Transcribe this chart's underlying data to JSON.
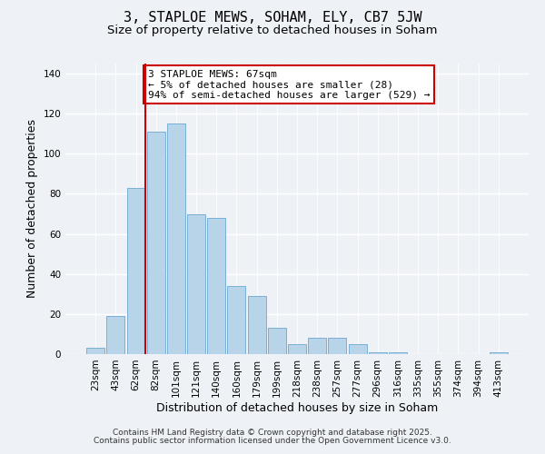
{
  "title": "3, STAPLOE MEWS, SOHAM, ELY, CB7 5JW",
  "subtitle": "Size of property relative to detached houses in Soham",
  "bar_labels": [
    "23sqm",
    "43sqm",
    "62sqm",
    "82sqm",
    "101sqm",
    "121sqm",
    "140sqm",
    "160sqm",
    "179sqm",
    "199sqm",
    "218sqm",
    "238sqm",
    "257sqm",
    "277sqm",
    "296sqm",
    "316sqm",
    "335sqm",
    "355sqm",
    "374sqm",
    "394sqm",
    "413sqm"
  ],
  "bar_values": [
    3,
    19,
    83,
    111,
    115,
    70,
    68,
    34,
    29,
    13,
    5,
    8,
    8,
    5,
    1,
    1,
    0,
    0,
    0,
    0,
    1
  ],
  "bar_color": "#b8d4e8",
  "bar_edge_color": "#7aafd4",
  "highlight_index": 2,
  "highlight_line_color": "#cc0000",
  "xlabel": "Distribution of detached houses by size in Soham",
  "ylabel": "Number of detached properties",
  "ylim": [
    0,
    145
  ],
  "yticks": [
    0,
    20,
    40,
    60,
    80,
    100,
    120,
    140
  ],
  "annotation_title": "3 STAPLOE MEWS: 67sqm",
  "annotation_line1": "← 5% of detached houses are smaller (28)",
  "annotation_line2": "94% of semi-detached houses are larger (529) →",
  "footer1": "Contains HM Land Registry data © Crown copyright and database right 2025.",
  "footer2": "Contains public sector information licensed under the Open Government Licence v3.0.",
  "background_color": "#eef2f7",
  "grid_color": "#ffffff",
  "title_fontsize": 11,
  "subtitle_fontsize": 9.5,
  "axis_label_fontsize": 9,
  "tick_fontsize": 7.5,
  "annotation_fontsize": 8,
  "footer_fontsize": 6.5
}
